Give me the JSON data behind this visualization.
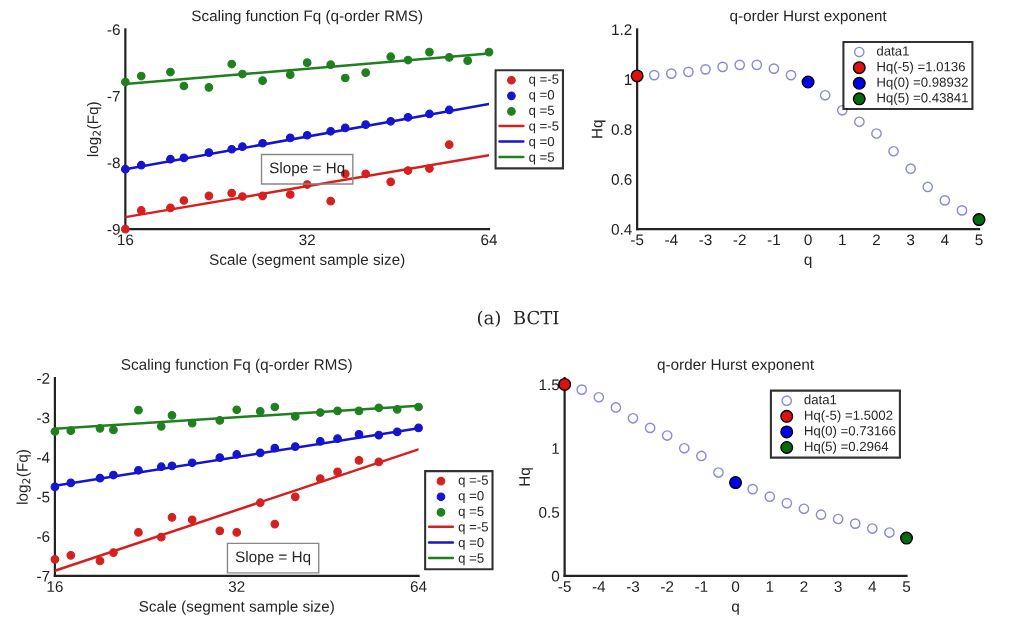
{
  "chart_data": [
    {
      "type": "scatter",
      "title": "Scaling function Fq (q-order RMS)",
      "xlabel": "Scale (segment sample size)",
      "ylabel": "log$_{2}$(Fq)",
      "x": [
        16,
        17,
        19,
        20,
        22,
        24,
        25,
        27,
        30,
        32,
        35,
        37,
        40,
        44,
        47,
        51,
        55,
        59,
        64
      ],
      "series": [
        {
          "name": "q =-5",
          "color": "#d62020",
          "values": [
            -9.0,
            -8.72,
            -8.68,
            -8.57,
            -8.5,
            -8.46,
            -8.51,
            -8.5,
            -8.48,
            -8.33,
            -8.58,
            -8.17,
            -8.17,
            -8.29,
            -8.12,
            -8.09,
            -7.73,
            null,
            null
          ]
        },
        {
          "name": "q =0",
          "color": "#1515d0",
          "values": [
            -8.1,
            -8.04,
            -7.95,
            -7.93,
            -7.85,
            -7.8,
            -7.76,
            -7.71,
            -7.63,
            -7.59,
            -7.53,
            -7.48,
            -7.43,
            -7.38,
            -7.32,
            -7.27,
            -7.21,
            null,
            null
          ]
        },
        {
          "name": "q =5",
          "color": "#208020",
          "values": [
            -6.79,
            -6.7,
            -6.64,
            -6.85,
            -6.87,
            -6.52,
            -6.67,
            -6.77,
            -6.68,
            -6.5,
            -6.53,
            -6.73,
            -6.65,
            -6.41,
            -6.46,
            -6.34,
            -6.42,
            -6.47,
            -6.34
          ]
        },
        {
          "name": "q =-5",
          "color": "#d62020",
          "type": "line",
          "marker": "none",
          "x": [
            16,
            64
          ],
          "values": [
            -8.82,
            -7.89
          ]
        },
        {
          "name": "q =0",
          "color": "#1515d0",
          "type": "line",
          "marker": "none",
          "x": [
            16,
            64
          ],
          "values": [
            -8.1,
            -7.12
          ]
        },
        {
          "name": "q =5",
          "color": "#208020",
          "type": "line",
          "marker": "none",
          "x": [
            16,
            64
          ],
          "values": [
            -6.82,
            -6.36
          ]
        }
      ],
      "log": "x",
      "xlim": [
        16,
        64
      ],
      "xticks": [
        16,
        32,
        64
      ],
      "ylim": [
        -9,
        -6
      ],
      "yticks": [
        -9,
        -8,
        -7,
        -6
      ],
      "marker": "circle",
      "legend": "right",
      "grid": false,
      "annotations": [
        "Slope = Hq",
        "(a)  BCTI"
      ]
    },
    {
      "type": "scatter",
      "title": "q-order Hurst exponent",
      "xlabel": "q",
      "ylabel": "Hq",
      "series": [
        {
          "name": "data1",
          "color": "#8a8ad6",
          "x": [
            -4.5,
            -4,
            -3.5,
            -3,
            -2.5,
            -2,
            -1.5,
            -1,
            -0.5,
            0.5,
            1,
            1.5,
            2,
            2.5,
            3,
            3.5,
            4,
            4.5
          ],
          "values": [
            1.017,
            1.023,
            1.03,
            1.04,
            1.05,
            1.058,
            1.058,
            1.043,
            1.017,
            0.936,
            0.876,
            0.83,
            0.783,
            0.712,
            0.642,
            0.569,
            0.515,
            0.475
          ]
        },
        {
          "name": "Hq(-5) =1.0136",
          "color": "#e01010",
          "x": [
            -5
          ],
          "values": [
            1.0136
          ]
        },
        {
          "name": "Hq(0) =0.98932",
          "color": "#0000ee",
          "x": [
            0
          ],
          "values": [
            0.98932
          ]
        },
        {
          "name": "Hq(5) =0.43841",
          "color": "#006a10",
          "x": [
            5
          ],
          "values": [
            0.43841
          ]
        }
      ],
      "xlim": [
        -5,
        5
      ],
      "xticks": [
        -5,
        -4,
        -3,
        -2,
        -1,
        0,
        1,
        2,
        3,
        4,
        5
      ],
      "ylim": [
        0.4,
        1.2
      ],
      "yticks": [
        0.4,
        0.6,
        0.8,
        1,
        1.2
      ],
      "marker": "circle",
      "legend": "top right",
      "grid": false
    },
    {
      "type": "scatter",
      "title": "Scaling function Fq (q-order RMS)",
      "xlabel": "Scale (segment sample size)",
      "ylabel": "log$_{2}$(Fq)",
      "x": [
        16,
        17,
        19,
        20,
        22,
        24,
        25,
        27,
        30,
        32,
        35,
        37,
        40,
        44,
        47,
        51,
        55,
        59,
        64
      ],
      "series": [
        {
          "name": "q =-5",
          "color": "#d62020",
          "values": [
            -6.58,
            -6.48,
            -6.62,
            -6.41,
            -5.9,
            -6.02,
            -5.52,
            -5.58,
            -5.86,
            -5.9,
            -5.15,
            -5.69,
            -5.0,
            -4.54,
            -4.37,
            -4.08,
            -4.12,
            null,
            null
          ]
        },
        {
          "name": "q =0",
          "color": "#1515d0",
          "values": [
            -4.75,
            -4.65,
            -4.53,
            -4.45,
            -4.33,
            -4.24,
            -4.22,
            -4.14,
            -4.01,
            -3.93,
            -3.89,
            -3.77,
            -3.73,
            -3.6,
            -3.53,
            -3.42,
            -3.44,
            -3.36,
            -3.26
          ]
        },
        {
          "name": "q =5",
          "color": "#208020",
          "values": [
            -3.35,
            -3.33,
            -3.27,
            -3.31,
            -2.81,
            -3.22,
            -2.94,
            -3.14,
            -3.07,
            -2.8,
            -2.84,
            -2.73,
            -2.97,
            -2.87,
            -2.83,
            -2.83,
            -2.75,
            -2.79,
            -2.73
          ]
        },
        {
          "name": "q =-5",
          "color": "#d62020",
          "type": "line",
          "marker": "none",
          "x": [
            16,
            64
          ],
          "values": [
            -6.87,
            -3.8
          ]
        },
        {
          "name": "q =0",
          "color": "#1515d0",
          "type": "line",
          "marker": "none",
          "x": [
            16,
            64
          ],
          "values": [
            -4.72,
            -3.27
          ]
        },
        {
          "name": "q =5",
          "color": "#208020",
          "type": "line",
          "marker": "none",
          "x": [
            16,
            64
          ],
          "values": [
            -3.28,
            -2.7
          ]
        }
      ],
      "log": "x",
      "xlim": [
        16,
        64
      ],
      "xticks": [
        16,
        32,
        64
      ],
      "ylim": [
        -7,
        -2
      ],
      "yticks": [
        -7,
        -6,
        -5,
        -4,
        -3,
        -2
      ],
      "marker": "circle",
      "legend": "bottom right",
      "grid": false,
      "annotations": [
        "Slope = Hq"
      ]
    },
    {
      "type": "scatter",
      "title": "q-order Hurst exponent",
      "xlabel": "q",
      "ylabel": "Hq",
      "series": [
        {
          "name": "data1",
          "color": "#8a8ad6",
          "x": [
            -4.5,
            -4,
            -3.5,
            -3,
            -2.5,
            -2,
            -1.5,
            -1,
            -0.5,
            0.5,
            1,
            1.5,
            2,
            2.5,
            3,
            3.5,
            4,
            4.5
          ],
          "values": [
            1.46,
            1.4,
            1.32,
            1.235,
            1.16,
            1.1,
            1.0,
            0.94,
            0.81,
            0.68,
            0.621,
            0.57,
            0.526,
            0.48,
            0.446,
            0.41,
            0.371,
            0.34
          ]
        },
        {
          "name": "Hq(-5) =1.5002",
          "color": "#e01010",
          "x": [
            -5
          ],
          "values": [
            1.5002
          ]
        },
        {
          "name": "Hq(0) =0.73166",
          "color": "#0000ee",
          "x": [
            0
          ],
          "values": [
            0.73166
          ]
        },
        {
          "name": "Hq(5) =0.2964",
          "color": "#006a10",
          "x": [
            5
          ],
          "values": [
            0.2964
          ]
        }
      ],
      "xlim": [
        -5,
        5
      ],
      "xticks": [
        -5,
        -4,
        -3,
        -2,
        -1,
        0,
        1,
        2,
        3,
        4,
        5
      ],
      "ylim": [
        0,
        1.55
      ],
      "yticks": [
        0,
        0.5,
        1,
        1.5
      ],
      "marker": "circle",
      "legend": "top right",
      "grid": false
    }
  ]
}
